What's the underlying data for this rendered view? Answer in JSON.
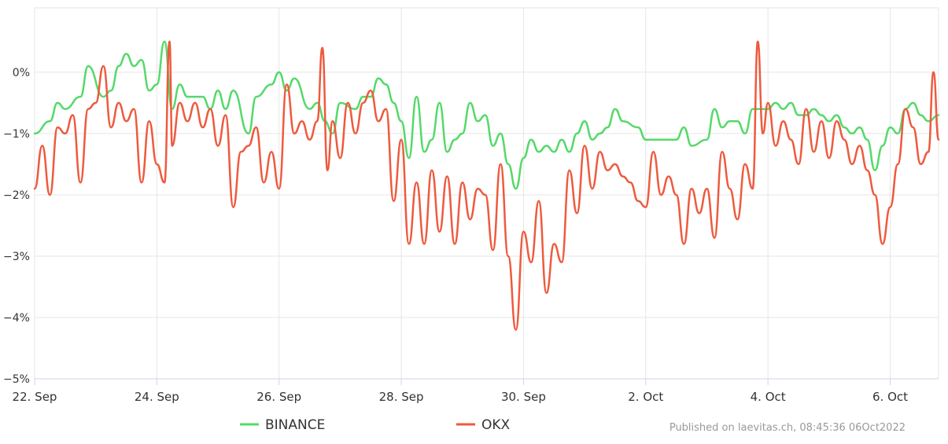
{
  "chart_data": {
    "type": "line",
    "x_unit": "date",
    "x_start": "2022-09-22",
    "x_end": "2022-10-06T19:00",
    "x_ticks": [
      {
        "date": "2022-09-22",
        "label": "22. Sep"
      },
      {
        "date": "2022-09-24",
        "label": "24. Sep"
      },
      {
        "date": "2022-09-26",
        "label": "26. Sep"
      },
      {
        "date": "2022-09-28",
        "label": "28. Sep"
      },
      {
        "date": "2022-09-30",
        "label": "30. Sep"
      },
      {
        "date": "2022-10-02",
        "label": "2. Oct"
      },
      {
        "date": "2022-10-04",
        "label": "4. Oct"
      },
      {
        "date": "2022-10-06",
        "label": "6. Oct"
      }
    ],
    "y_ticks": [
      {
        "value": 0,
        "label": "0%"
      },
      {
        "value": -1,
        "label": "−1%"
      },
      {
        "value": -2,
        "label": "−2%"
      },
      {
        "value": -3,
        "label": "−3%"
      },
      {
        "value": -4,
        "label": "−4%"
      },
      {
        "value": -5,
        "label": "−5%"
      }
    ],
    "ylim": [
      -5,
      1.05
    ],
    "grid": true,
    "legend_placement": "bottom-center",
    "series": [
      {
        "name": "BINANCE",
        "color": "#55d96a",
        "points": [
          [
            "2022-09-22T00:00",
            -1.0
          ],
          [
            "2022-09-22T06:00",
            -0.8
          ],
          [
            "2022-09-22T09:00",
            -0.5
          ],
          [
            "2022-09-22T12:00",
            -0.6
          ],
          [
            "2022-09-22T18:00",
            -0.4
          ],
          [
            "2022-09-22T21:00",
            0.1
          ],
          [
            "2022-09-23T03:00",
            -0.4
          ],
          [
            "2022-09-23T06:00",
            -0.3
          ],
          [
            "2022-09-23T09:00",
            0.1
          ],
          [
            "2022-09-23T12:00",
            0.3
          ],
          [
            "2022-09-23T15:00",
            0.1
          ],
          [
            "2022-09-23T18:00",
            0.2
          ],
          [
            "2022-09-23T21:00",
            -0.3
          ],
          [
            "2022-09-24T00:00",
            -0.2
          ],
          [
            "2022-09-24T03:00",
            0.5
          ],
          [
            "2022-09-24T06:00",
            -0.6
          ],
          [
            "2022-09-24T09:00",
            -0.2
          ],
          [
            "2022-09-24T12:00",
            -0.4
          ],
          [
            "2022-09-24T18:00",
            -0.4
          ],
          [
            "2022-09-24T21:00",
            -0.6
          ],
          [
            "2022-09-25T00:00",
            -0.3
          ],
          [
            "2022-09-25T03:00",
            -0.6
          ],
          [
            "2022-09-25T06:00",
            -0.3
          ],
          [
            "2022-09-25T12:00",
            -1.0
          ],
          [
            "2022-09-25T15:00",
            -0.4
          ],
          [
            "2022-09-25T21:00",
            -0.2
          ],
          [
            "2022-09-26T00:00",
            0.0
          ],
          [
            "2022-09-26T03:00",
            -0.3
          ],
          [
            "2022-09-26T06:00",
            -0.1
          ],
          [
            "2022-09-26T12:00",
            -0.6
          ],
          [
            "2022-09-26T15:00",
            -0.5
          ],
          [
            "2022-09-26T18:00",
            -0.8
          ],
          [
            "2022-09-26T21:00",
            -1.0
          ],
          [
            "2022-09-27T00:00",
            -0.5
          ],
          [
            "2022-09-27T06:00",
            -0.6
          ],
          [
            "2022-09-27T09:00",
            -0.4
          ],
          [
            "2022-09-27T12:00",
            -0.4
          ],
          [
            "2022-09-27T15:00",
            -0.1
          ],
          [
            "2022-09-27T18:00",
            -0.2
          ],
          [
            "2022-09-27T21:00",
            -0.5
          ],
          [
            "2022-09-28T00:00",
            -0.8
          ],
          [
            "2022-09-28T03:00",
            -1.4
          ],
          [
            "2022-09-28T06:00",
            -0.4
          ],
          [
            "2022-09-28T09:00",
            -1.3
          ],
          [
            "2022-09-28T12:00",
            -1.1
          ],
          [
            "2022-09-28T15:00",
            -0.5
          ],
          [
            "2022-09-28T18:00",
            -1.3
          ],
          [
            "2022-09-28T21:00",
            -1.1
          ],
          [
            "2022-09-29T00:00",
            -1.0
          ],
          [
            "2022-09-29T03:00",
            -0.5
          ],
          [
            "2022-09-29T06:00",
            -0.8
          ],
          [
            "2022-09-29T09:00",
            -0.7
          ],
          [
            "2022-09-29T12:00",
            -1.2
          ],
          [
            "2022-09-29T15:00",
            -1.0
          ],
          [
            "2022-09-29T18:00",
            -1.5
          ],
          [
            "2022-09-29T21:00",
            -1.9
          ],
          [
            "2022-09-30T00:00",
            -1.4
          ],
          [
            "2022-09-30T03:00",
            -1.1
          ],
          [
            "2022-09-30T06:00",
            -1.3
          ],
          [
            "2022-09-30T09:00",
            -1.2
          ],
          [
            "2022-09-30T12:00",
            -1.3
          ],
          [
            "2022-09-30T15:00",
            -1.1
          ],
          [
            "2022-09-30T18:00",
            -1.3
          ],
          [
            "2022-09-30T21:00",
            -1.0
          ],
          [
            "2022-10-01T00:00",
            -0.8
          ],
          [
            "2022-10-01T03:00",
            -1.1
          ],
          [
            "2022-10-01T06:00",
            -1.0
          ],
          [
            "2022-10-01T09:00",
            -0.9
          ],
          [
            "2022-10-01T12:00",
            -0.6
          ],
          [
            "2022-10-01T15:00",
            -0.8
          ],
          [
            "2022-10-01T21:00",
            -0.9
          ],
          [
            "2022-10-02T00:00",
            -1.1
          ],
          [
            "2022-10-02T06:00",
            -1.1
          ],
          [
            "2022-10-02T12:00",
            -1.1
          ],
          [
            "2022-10-02T15:00",
            -0.9
          ],
          [
            "2022-10-02T18:00",
            -1.2
          ],
          [
            "2022-10-03T00:00",
            -1.1
          ],
          [
            "2022-10-03T03:00",
            -0.6
          ],
          [
            "2022-10-03T06:00",
            -0.9
          ],
          [
            "2022-10-03T09:00",
            -0.8
          ],
          [
            "2022-10-03T12:00",
            -0.8
          ],
          [
            "2022-10-03T15:00",
            -1.0
          ],
          [
            "2022-10-03T18:00",
            -0.6
          ],
          [
            "2022-10-03T21:00",
            -0.6
          ],
          [
            "2022-10-04T00:00",
            -0.6
          ],
          [
            "2022-10-04T03:00",
            -0.5
          ],
          [
            "2022-10-04T06:00",
            -0.6
          ],
          [
            "2022-10-04T09:00",
            -0.5
          ],
          [
            "2022-10-04T12:00",
            -0.7
          ],
          [
            "2022-10-04T15:00",
            -0.7
          ],
          [
            "2022-10-04T18:00",
            -0.6
          ],
          [
            "2022-10-04T21:00",
            -0.7
          ],
          [
            "2022-10-05T00:00",
            -0.8
          ],
          [
            "2022-10-05T03:00",
            -0.7
          ],
          [
            "2022-10-05T06:00",
            -0.9
          ],
          [
            "2022-10-05T09:00",
            -1.0
          ],
          [
            "2022-10-05T12:00",
            -0.9
          ],
          [
            "2022-10-05T15:00",
            -1.1
          ],
          [
            "2022-10-05T18:00",
            -1.6
          ],
          [
            "2022-10-05T21:00",
            -1.2
          ],
          [
            "2022-10-06T00:00",
            -0.9
          ],
          [
            "2022-10-06T03:00",
            -1.0
          ],
          [
            "2022-10-06T06:00",
            -0.6
          ],
          [
            "2022-10-06T09:00",
            -0.5
          ],
          [
            "2022-10-06T12:00",
            -0.7
          ],
          [
            "2022-10-06T15:00",
            -0.8
          ],
          [
            "2022-10-06T19:00",
            -0.7
          ]
        ]
      },
      {
        "name": "OKX",
        "color": "#ee5a3e",
        "points": [
          [
            "2022-09-22T00:00",
            -1.9
          ],
          [
            "2022-09-22T03:00",
            -1.2
          ],
          [
            "2022-09-22T06:00",
            -2.0
          ],
          [
            "2022-09-22T09:00",
            -0.9
          ],
          [
            "2022-09-22T12:00",
            -1.0
          ],
          [
            "2022-09-22T15:00",
            -0.7
          ],
          [
            "2022-09-22T18:00",
            -1.8
          ],
          [
            "2022-09-22T21:00",
            -0.6
          ],
          [
            "2022-09-23T00:00",
            -0.5
          ],
          [
            "2022-09-23T03:00",
            0.1
          ],
          [
            "2022-09-23T06:00",
            -0.9
          ],
          [
            "2022-09-23T09:00",
            -0.5
          ],
          [
            "2022-09-23T12:00",
            -0.8
          ],
          [
            "2022-09-23T15:00",
            -0.6
          ],
          [
            "2022-09-23T18:00",
            -1.8
          ],
          [
            "2022-09-23T21:00",
            -0.8
          ],
          [
            "2022-09-24T00:00",
            -1.5
          ],
          [
            "2022-09-24T03:00",
            -1.8
          ],
          [
            "2022-09-24T05:00",
            0.5
          ],
          [
            "2022-09-24T06:00",
            -1.2
          ],
          [
            "2022-09-24T09:00",
            -0.5
          ],
          [
            "2022-09-24T12:00",
            -0.8
          ],
          [
            "2022-09-24T15:00",
            -0.5
          ],
          [
            "2022-09-24T18:00",
            -0.9
          ],
          [
            "2022-09-24T21:00",
            -0.6
          ],
          [
            "2022-09-25T00:00",
            -1.2
          ],
          [
            "2022-09-25T03:00",
            -0.7
          ],
          [
            "2022-09-25T06:00",
            -2.2
          ],
          [
            "2022-09-25T09:00",
            -1.3
          ],
          [
            "2022-09-25T12:00",
            -1.2
          ],
          [
            "2022-09-25T15:00",
            -0.9
          ],
          [
            "2022-09-25T18:00",
            -1.8
          ],
          [
            "2022-09-25T21:00",
            -1.3
          ],
          [
            "2022-09-26T00:00",
            -1.9
          ],
          [
            "2022-09-26T03:00",
            -0.2
          ],
          [
            "2022-09-26T06:00",
            -1.0
          ],
          [
            "2022-09-26T09:00",
            -0.8
          ],
          [
            "2022-09-26T12:00",
            -1.1
          ],
          [
            "2022-09-26T15:00",
            -0.8
          ],
          [
            "2022-09-26T17:00",
            0.4
          ],
          [
            "2022-09-26T19:00",
            -1.6
          ],
          [
            "2022-09-26T21:00",
            -0.8
          ],
          [
            "2022-09-27T00:00",
            -1.4
          ],
          [
            "2022-09-27T03:00",
            -0.5
          ],
          [
            "2022-09-27T06:00",
            -1.0
          ],
          [
            "2022-09-27T09:00",
            -0.5
          ],
          [
            "2022-09-27T12:00",
            -0.3
          ],
          [
            "2022-09-27T15:00",
            -0.8
          ],
          [
            "2022-09-27T18:00",
            -0.6
          ],
          [
            "2022-09-27T21:00",
            -2.1
          ],
          [
            "2022-09-28T00:00",
            -1.1
          ],
          [
            "2022-09-28T03:00",
            -2.8
          ],
          [
            "2022-09-28T06:00",
            -1.8
          ],
          [
            "2022-09-28T09:00",
            -2.8
          ],
          [
            "2022-09-28T12:00",
            -1.6
          ],
          [
            "2022-09-28T15:00",
            -2.6
          ],
          [
            "2022-09-28T18:00",
            -1.7
          ],
          [
            "2022-09-28T21:00",
            -2.8
          ],
          [
            "2022-09-29T00:00",
            -1.8
          ],
          [
            "2022-09-29T03:00",
            -2.4
          ],
          [
            "2022-09-29T06:00",
            -1.9
          ],
          [
            "2022-09-29T09:00",
            -2.0
          ],
          [
            "2022-09-29T12:00",
            -2.9
          ],
          [
            "2022-09-29T15:00",
            -1.5
          ],
          [
            "2022-09-29T18:00",
            -3.0
          ],
          [
            "2022-09-29T21:00",
            -4.2
          ],
          [
            "2022-09-30T00:00",
            -2.6
          ],
          [
            "2022-09-30T03:00",
            -3.1
          ],
          [
            "2022-09-30T06:00",
            -2.1
          ],
          [
            "2022-09-30T09:00",
            -3.6
          ],
          [
            "2022-09-30T12:00",
            -2.8
          ],
          [
            "2022-09-30T15:00",
            -3.1
          ],
          [
            "2022-09-30T18:00",
            -1.6
          ],
          [
            "2022-09-30T21:00",
            -2.3
          ],
          [
            "2022-10-01T00:00",
            -1.2
          ],
          [
            "2022-10-01T03:00",
            -1.9
          ],
          [
            "2022-10-01T06:00",
            -1.3
          ],
          [
            "2022-10-01T09:00",
            -1.6
          ],
          [
            "2022-10-01T12:00",
            -1.5
          ],
          [
            "2022-10-01T15:00",
            -1.7
          ],
          [
            "2022-10-01T18:00",
            -1.8
          ],
          [
            "2022-10-01T21:00",
            -2.1
          ],
          [
            "2022-10-02T00:00",
            -2.2
          ],
          [
            "2022-10-02T03:00",
            -1.3
          ],
          [
            "2022-10-02T06:00",
            -2.0
          ],
          [
            "2022-10-02T09:00",
            -1.7
          ],
          [
            "2022-10-02T12:00",
            -2.0
          ],
          [
            "2022-10-02T15:00",
            -2.8
          ],
          [
            "2022-10-02T18:00",
            -1.9
          ],
          [
            "2022-10-02T21:00",
            -2.3
          ],
          [
            "2022-10-03T00:00",
            -1.9
          ],
          [
            "2022-10-03T03:00",
            -2.7
          ],
          [
            "2022-10-03T06:00",
            -1.3
          ],
          [
            "2022-10-03T09:00",
            -1.9
          ],
          [
            "2022-10-03T12:00",
            -2.4
          ],
          [
            "2022-10-03T15:00",
            -1.5
          ],
          [
            "2022-10-03T18:00",
            -1.9
          ],
          [
            "2022-10-03T20:00",
            0.5
          ],
          [
            "2022-10-03T22:00",
            -1.0
          ],
          [
            "2022-10-04T00:00",
            -0.5
          ],
          [
            "2022-10-04T03:00",
            -1.2
          ],
          [
            "2022-10-04T06:00",
            -0.8
          ],
          [
            "2022-10-04T09:00",
            -1.1
          ],
          [
            "2022-10-04T12:00",
            -1.5
          ],
          [
            "2022-10-04T15:00",
            -0.6
          ],
          [
            "2022-10-04T18:00",
            -1.3
          ],
          [
            "2022-10-04T21:00",
            -0.8
          ],
          [
            "2022-10-05T00:00",
            -1.4
          ],
          [
            "2022-10-05T03:00",
            -0.8
          ],
          [
            "2022-10-05T06:00",
            -1.1
          ],
          [
            "2022-10-05T09:00",
            -1.5
          ],
          [
            "2022-10-05T12:00",
            -1.2
          ],
          [
            "2022-10-05T15:00",
            -1.6
          ],
          [
            "2022-10-05T18:00",
            -2.0
          ],
          [
            "2022-10-05T21:00",
            -2.8
          ],
          [
            "2022-10-06T00:00",
            -2.2
          ],
          [
            "2022-10-06T03:00",
            -1.5
          ],
          [
            "2022-10-06T06:00",
            -0.6
          ],
          [
            "2022-10-06T09:00",
            -0.9
          ],
          [
            "2022-10-06T12:00",
            -1.5
          ],
          [
            "2022-10-06T15:00",
            -1.3
          ],
          [
            "2022-10-06T17:00",
            0.0
          ],
          [
            "2022-10-06T19:00",
            -1.1
          ]
        ]
      }
    ]
  },
  "credit": "Published on laevitas.ch, 08:45:36 06Oct2022"
}
